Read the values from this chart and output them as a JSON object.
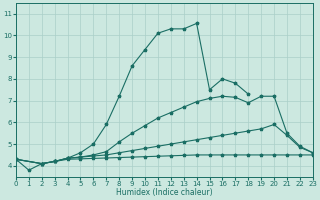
{
  "xlabel": "Humidex (Indice chaleur)",
  "xlim": [
    0,
    23
  ],
  "ylim": [
    3.5,
    11.5
  ],
  "xticks": [
    0,
    1,
    2,
    3,
    4,
    5,
    6,
    7,
    8,
    9,
    10,
    11,
    12,
    13,
    14,
    15,
    16,
    17,
    18,
    19,
    20,
    21,
    22,
    23
  ],
  "yticks": [
    4,
    5,
    6,
    7,
    8,
    9,
    10,
    11
  ],
  "background_color": "#cce8e0",
  "grid_color": "#aacfc8",
  "line_color": "#1a6e64",
  "curves": [
    {
      "x": [
        0,
        2,
        3,
        4,
        5,
        6,
        7,
        8,
        9,
        10,
        11,
        12,
        13,
        14,
        15,
        16,
        17,
        18
      ],
      "y": [
        4.3,
        4.1,
        4.2,
        4.35,
        4.6,
        5.0,
        5.9,
        7.2,
        8.6,
        9.35,
        10.1,
        10.3,
        10.3,
        10.55,
        7.5,
        8.0,
        7.8,
        7.3
      ]
    },
    {
      "x": [
        0,
        2,
        3,
        4,
        5,
        6,
        7,
        8,
        9,
        10,
        11,
        12,
        13,
        14,
        15,
        16,
        17,
        18,
        19,
        20,
        21,
        22,
        23
      ],
      "y": [
        4.3,
        4.1,
        4.2,
        4.35,
        4.4,
        4.5,
        4.65,
        5.1,
        5.5,
        5.85,
        6.2,
        6.45,
        6.7,
        6.95,
        7.1,
        7.2,
        7.15,
        6.9,
        7.2,
        7.2,
        5.5,
        4.9,
        4.6
      ]
    },
    {
      "x": [
        0,
        2,
        3,
        4,
        5,
        6,
        7,
        8,
        9,
        10,
        11,
        12,
        13,
        14,
        15,
        16,
        17,
        18,
        19,
        20,
        21,
        22,
        23
      ],
      "y": [
        4.3,
        4.1,
        4.2,
        4.35,
        4.4,
        4.45,
        4.5,
        4.6,
        4.7,
        4.8,
        4.9,
        5.0,
        5.1,
        5.2,
        5.3,
        5.4,
        5.5,
        5.6,
        5.7,
        5.9,
        5.4,
        4.85,
        4.6
      ]
    },
    {
      "x": [
        0,
        1,
        2,
        3,
        4,
        5,
        6,
        7,
        8,
        9,
        10,
        11,
        12,
        13,
        14,
        15,
        16,
        17,
        18,
        19,
        20,
        21,
        22,
        23
      ],
      "y": [
        4.3,
        3.8,
        4.1,
        4.2,
        4.3,
        4.32,
        4.34,
        4.36,
        4.38,
        4.4,
        4.42,
        4.44,
        4.46,
        4.48,
        4.5,
        4.5,
        4.5,
        4.5,
        4.5,
        4.5,
        4.5,
        4.5,
        4.5,
        4.5
      ]
    }
  ]
}
